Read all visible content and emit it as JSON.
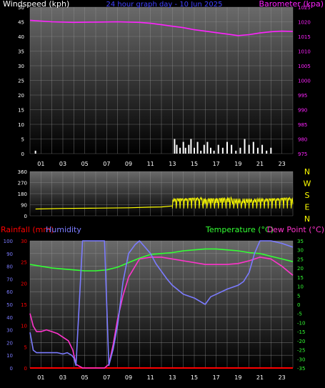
{
  "colors": {
    "background": "#000000",
    "wind": "#ffffff",
    "barometer": "#ff22ff",
    "direction": "#ffff00",
    "rainfall": "#ff0000",
    "humidity": "#7b7bff",
    "temperature": "#33ff33",
    "dewpoint": "#ff33cc",
    "axis_text": "#ffffff",
    "date_text": "#4040ff"
  },
  "hour_ticks": [
    "01",
    "03",
    "05",
    "07",
    "09",
    "11",
    "13",
    "15",
    "17",
    "19",
    "21",
    "23"
  ],
  "chart_data": [
    {
      "type": "line",
      "panel": "wind-barometer",
      "title": "24 hour graph day - 10 Jun 2025",
      "series": [
        {
          "name": "Windspeed (kph)",
          "color": "#ffffff",
          "axis": "left",
          "style": "bars",
          "x": [
            0.5,
            13.2,
            13.4,
            13.7,
            14.0,
            14.2,
            14.5,
            14.7,
            15.0,
            15.3,
            15.6,
            15.9,
            16.2,
            16.5,
            16.8,
            17.2,
            17.6,
            18.0,
            18.4,
            18.8,
            19.2,
            19.6,
            20.0,
            20.4,
            20.8,
            21.2,
            21.6,
            22.0
          ],
          "values": [
            1,
            5,
            3,
            2,
            4,
            2,
            3,
            5,
            2,
            4,
            1,
            3,
            4,
            2,
            1,
            3,
            2,
            4,
            3,
            1,
            2,
            5,
            3,
            4,
            2,
            3,
            1,
            2
          ]
        },
        {
          "name": "Barometer (kpa)",
          "color": "#ff22ff",
          "axis": "right",
          "x": [
            0,
            2,
            4,
            6,
            8,
            10,
            11,
            12,
            13,
            14,
            15,
            16,
            17,
            18,
            19,
            20,
            21,
            22,
            23,
            24
          ],
          "values": [
            1020.5,
            1020.0,
            1019.8,
            1019.9,
            1020.0,
            1019.8,
            1019.5,
            1019.0,
            1018.5,
            1018.0,
            1017.3,
            1016.8,
            1016.3,
            1015.8,
            1015.3,
            1015.6,
            1016.2,
            1016.6,
            1016.8,
            1016.7
          ]
        }
      ],
      "ylabel_left": "Windspeed (kph)",
      "ylim_left": [
        0,
        50
      ],
      "yticks_left": [
        0,
        5,
        10,
        15,
        20,
        25,
        30,
        35,
        40,
        45,
        50
      ],
      "ylabel_right": "Barometer (kpa)",
      "ylim_right": [
        975,
        1025
      ],
      "yticks_right": [
        975,
        980,
        985,
        990,
        995,
        1000,
        1005,
        1010,
        1015,
        1020,
        1025
      ],
      "xlim": [
        0,
        24
      ],
      "grid": true
    },
    {
      "type": "line",
      "panel": "wind-direction",
      "series": [
        {
          "name": "Wind direction",
          "color": "#ffff00",
          "x": [
            0.5,
            3,
            6,
            9,
            11,
            12,
            13
          ],
          "values": [
            55,
            60,
            62,
            65,
            70,
            72,
            80
          ]
        }
      ],
      "ylim": [
        0,
        360
      ],
      "yticks_left": [
        0,
        90,
        180,
        270,
        360
      ],
      "compass_labels": [
        "N",
        "W",
        "S",
        "E",
        "N"
      ],
      "xlim": [
        0,
        24
      ],
      "grid": true
    },
    {
      "type": "line",
      "panel": "rain-humidity-temperature",
      "series": [
        {
          "name": "Rainfall (mm)",
          "color": "#ff0000",
          "axis": "left-rain",
          "x": [
            0,
            24
          ],
          "values": [
            0,
            0
          ]
        },
        {
          "name": "Humidity",
          "color": "#7b7bff",
          "axis": "left-humidity",
          "x": [
            0,
            0.3,
            0.6,
            1.0,
            1.5,
            2.0,
            2.5,
            3.0,
            3.4,
            3.8,
            4.0,
            4.2,
            4.8,
            6.8,
            7.2,
            7.6,
            8.0,
            8.5,
            9.0,
            9.6,
            10.0,
            10.5,
            11.0,
            11.5,
            12.0,
            12.5,
            13.0,
            14.0,
            15.0,
            16.0,
            16.5,
            17.0,
            18.0,
            19.0,
            19.5,
            20.0,
            20.5,
            21.0,
            22.0,
            23.0,
            24.0
          ],
          "values": [
            28,
            14,
            12,
            12,
            12,
            12,
            12,
            11,
            12,
            10,
            8,
            2,
            100,
            100,
            2,
            15,
            34,
            68,
            90,
            97,
            100,
            95,
            90,
            82,
            76,
            70,
            65,
            58,
            55,
            50,
            56,
            58,
            62,
            65,
            68,
            75,
            90,
            100,
            100,
            98,
            95
          ]
        },
        {
          "name": "Temperature (°C)",
          "color": "#33ff33",
          "axis": "right",
          "x": [
            0,
            1,
            2,
            3,
            4,
            5,
            6,
            7,
            8,
            9,
            10,
            11,
            12,
            13,
            14,
            15,
            16,
            17,
            18,
            19,
            20,
            21,
            22,
            23,
            24
          ],
          "values": [
            22,
            21,
            20,
            19.5,
            19,
            18.5,
            18.5,
            19,
            20.5,
            23,
            25.5,
            27.5,
            28,
            28.5,
            29.5,
            30,
            30.5,
            30.5,
            30,
            29.5,
            28.5,
            28,
            26.5,
            25,
            23.5
          ]
        },
        {
          "name": "Dew Point (°C)",
          "color": "#ff33cc",
          "axis": "right",
          "x": [
            0,
            0.3,
            0.6,
            1.0,
            1.5,
            2.0,
            2.5,
            3.0,
            3.5,
            3.9,
            4.2,
            4.8,
            6.8,
            7.2,
            7.6,
            8.0,
            8.5,
            9.0,
            10.0,
            11.0,
            12.0,
            13.0,
            14.0,
            15.0,
            16.0,
            17.0,
            18.0,
            19.0,
            20.0,
            21.0,
            22.0,
            23.0,
            24.0
          ],
          "values": [
            -5,
            -12,
            -15,
            -15,
            -14,
            -15,
            -16,
            -18,
            -20,
            -25,
            -33,
            -35,
            -35,
            -33,
            -22,
            -8,
            5,
            15,
            25,
            26,
            26,
            25,
            24,
            23,
            22,
            22,
            22,
            22.5,
            24,
            26,
            25,
            21,
            16
          ]
        }
      ],
      "ylabel_left_rain": "Rainfall (mm)",
      "ylim_left_rain": [
        0,
        30
      ],
      "yticks_left_rain": [
        0,
        5,
        10,
        15,
        20,
        25,
        30
      ],
      "ylabel_left_humidity": "Humidity",
      "ylim_left_humidity": [
        0,
        100
      ],
      "yticks_left_humidity": [
        0,
        10,
        20,
        30,
        40,
        50,
        60,
        70,
        80,
        90,
        100
      ],
      "ylabel_right_temperature": "Temperature (°C)",
      "ylabel_right_dewpoint": "Dew Point (°C)",
      "ylim_right": [
        -35,
        35
      ],
      "yticks_right": [
        -35,
        -30,
        -25,
        -20,
        -15,
        -10,
        -5,
        0,
        5,
        10,
        15,
        20,
        25,
        30,
        35
      ],
      "xlim": [
        0,
        24
      ],
      "grid": true
    }
  ]
}
